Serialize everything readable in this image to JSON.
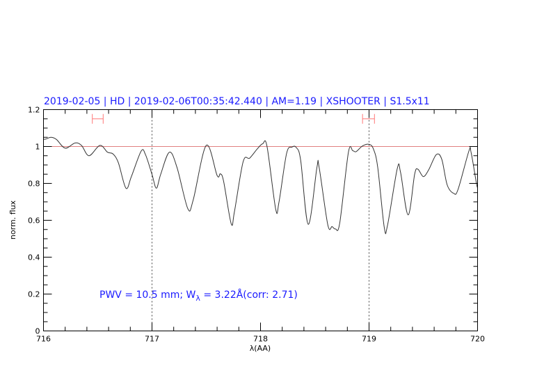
{
  "chart_data": {
    "type": "line",
    "title": "2019-02-05 | HD | 2019-02-06T00:35:42.440 | AM=1.19 | XSHOOTER | S1.5x11",
    "xlabel": "λ(AA)",
    "ylabel": "norm. flux",
    "xlim": [
      716,
      720
    ],
    "ylim": [
      0,
      1.2
    ],
    "xticks": [
      "716",
      "717",
      "718",
      "719",
      "720"
    ],
    "yticks": [
      "0",
      "0.2",
      "0.4",
      "0.6",
      "0.8",
      "1",
      "1.2"
    ],
    "grid": false,
    "reference_line": {
      "y": 1,
      "color": "#e08080"
    },
    "vertical_dotted_lines": [
      717,
      719
    ],
    "intervals": [
      {
        "x": [
          716.45,
          716.55
        ],
        "y": 1.15,
        "color": "#ff7777"
      },
      {
        "x": [
          718.94,
          719.05
        ],
        "y": 1.15,
        "color": "#ff7777"
      }
    ],
    "annotation": {
      "pre": "PWV  =  10.5  mm;  W",
      "sub": "λ",
      "post": "  =  3.22Å(corr:  2.71)"
    },
    "series": [
      {
        "color": "#333333",
        "x": [
          716.0,
          716.02,
          716.07,
          716.12,
          716.2,
          716.29,
          716.35,
          716.42,
          716.52,
          716.59,
          716.64,
          716.69,
          716.76,
          716.81,
          716.9,
          716.94,
          717.0,
          717.04,
          717.08,
          717.16,
          717.23,
          717.33,
          717.38,
          717.5,
          717.6,
          717.63,
          717.66,
          717.73,
          717.76,
          717.84,
          717.9,
          717.97,
          718.02,
          718.06,
          718.14,
          718.17,
          718.24,
          718.29,
          718.33,
          718.37,
          718.44,
          718.52,
          718.54,
          718.62,
          718.66,
          718.69,
          718.73,
          718.81,
          718.85,
          718.88,
          718.94,
          719.0,
          719.04,
          719.08,
          719.14,
          719.17,
          719.26,
          719.29,
          719.36,
          719.42,
          719.45,
          719.5,
          719.55,
          719.62,
          719.67,
          719.72,
          719.78,
          719.82,
          719.92,
          719.94,
          719.99,
          720.0
        ],
        "y": [
          1.04,
          1.04,
          1.05,
          1.038,
          0.991,
          1.019,
          1.006,
          0.95,
          1.006,
          0.969,
          0.96,
          0.912,
          0.774,
          0.837,
          0.975,
          0.956,
          0.849,
          0.774,
          0.849,
          0.969,
          0.887,
          0.663,
          0.711,
          1.006,
          0.843,
          0.852,
          0.811,
          0.581,
          0.648,
          0.918,
          0.937,
          0.987,
          1.015,
          1.0,
          0.66,
          0.698,
          0.962,
          0.997,
          0.994,
          0.925,
          0.578,
          0.887,
          0.887,
          0.575,
          0.566,
          0.553,
          0.585,
          0.969,
          0.977,
          0.972,
          1.003,
          1.012,
          0.987,
          0.887,
          0.562,
          0.572,
          0.88,
          0.861,
          0.629,
          0.849,
          0.877,
          0.837,
          0.874,
          0.956,
          0.931,
          0.792,
          0.746,
          0.767,
          0.975,
          0.969,
          0.799,
          0.78
        ]
      }
    ]
  }
}
